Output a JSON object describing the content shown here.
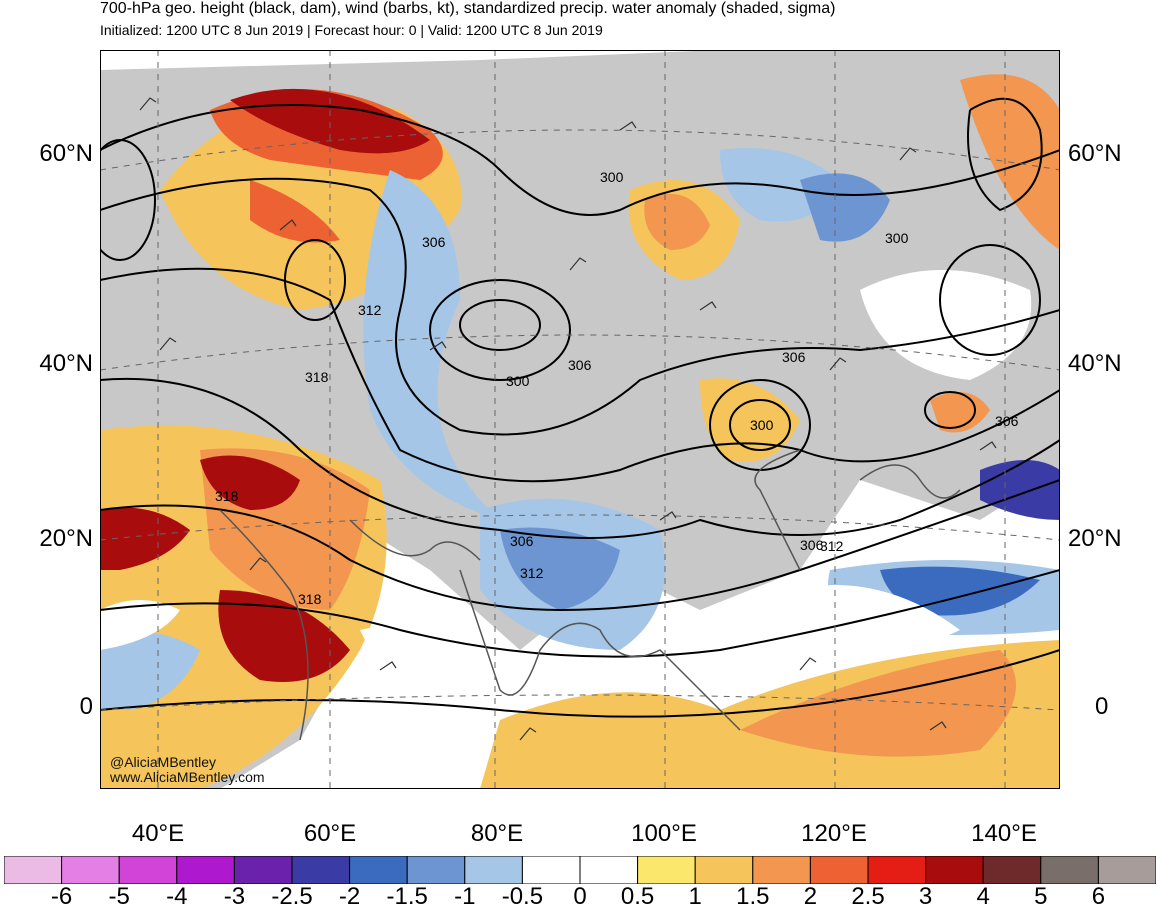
{
  "header": {
    "title": "700-hPa geo. height (black, dam), wind (barbs, kt), standardized precip. water anomaly (shaded, sigma)",
    "subtitle": "Initialized: 1200 UTC 8 Jun 2019 | Forecast hour: 0 | Valid: 1200 UTC 8 Jun 2019"
  },
  "map": {
    "lat_labels": [
      "60°N",
      "40°N",
      "20°N",
      "0"
    ],
    "lon_labels": [
      "40°E",
      "60°E",
      "80°E",
      "100°E",
      "120°E",
      "140°E"
    ],
    "contour_labels": [
      "300",
      "306",
      "312",
      "318",
      "300",
      "306",
      "300",
      "306",
      "300",
      "306",
      "306",
      "318",
      "318",
      "306",
      "312",
      "312"
    ],
    "land_color": "#c8c8c8",
    "contour_color": "#000000"
  },
  "colorbar": {
    "labels": [
      "-6",
      "-5",
      "-4",
      "-3",
      "-2.5",
      "-2",
      "-1.5",
      "-1",
      "-0.5",
      "0",
      "0.5",
      "1",
      "1.5",
      "2",
      "2.5",
      "3",
      "4",
      "5",
      "6"
    ],
    "colors": [
      "#ebbbe6",
      "#e37fe5",
      "#d244d8",
      "#ae18cf",
      "#6a22ad",
      "#3a3ba5",
      "#3b6bbf",
      "#6d95d1",
      "#a5c6e6",
      "#ffffff",
      "#ffffff",
      "#fbe76b",
      "#f5c55c",
      "#f29650",
      "#ed6233",
      "#e51e15",
      "#a90c0c",
      "#6e2a2a",
      "#7a6e6b",
      "#a89c9b"
    ]
  },
  "credits": {
    "handle": "@AliciaMBentley",
    "website": "www.AliciaMBentley.com"
  }
}
